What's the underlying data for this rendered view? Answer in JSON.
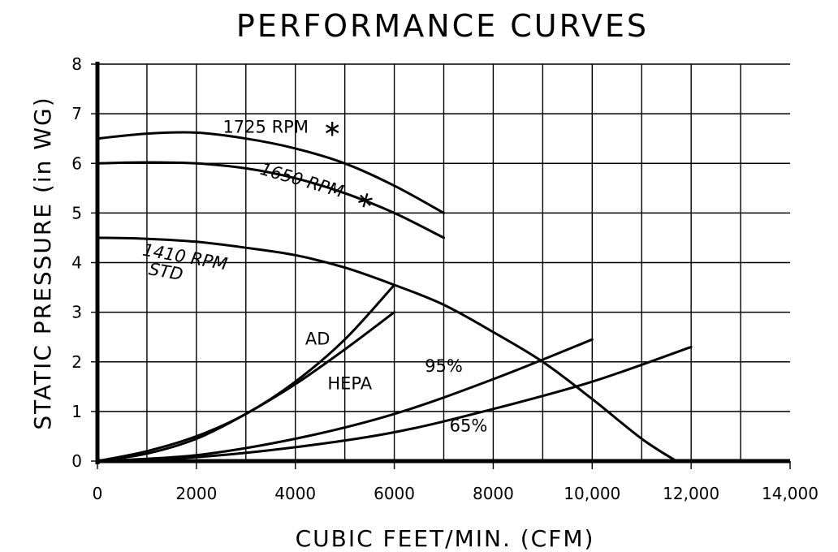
{
  "chart_data": {
    "type": "line",
    "title": "PERFORMANCE CURVES",
    "xlabel": "CUBIC FEET/MIN. (CFM)",
    "ylabel": "STATIC PRESSURE (in WG)",
    "xlim": [
      0,
      14000
    ],
    "ylim": [
      0,
      8
    ],
    "grid": true,
    "x_ticks": [
      0,
      2000,
      4000,
      6000,
      8000,
      10000,
      12000,
      14000
    ],
    "x_tick_labels": [
      "0",
      "2000",
      "4000",
      "6000",
      "8000",
      "10,000",
      "12,000",
      "14,000"
    ],
    "y_ticks": [
      0,
      1,
      2,
      3,
      4,
      5,
      6,
      7,
      8
    ],
    "y_tick_labels": [
      "0",
      "1",
      "2",
      "3",
      "4",
      "5",
      "6",
      "7",
      "8"
    ],
    "series": [
      {
        "name": "1725 RPM",
        "label_lines": [
          "1725 RPM"
        ],
        "asterisk": true,
        "x": [
          0,
          1000,
          2000,
          3000,
          4000,
          5000,
          6000,
          7000
        ],
        "y": [
          6.5,
          6.6,
          6.62,
          6.5,
          6.3,
          6.0,
          5.55,
          5.0
        ]
      },
      {
        "name": "1650 RPM",
        "label_lines": [
          "1650 RPM"
        ],
        "asterisk": true,
        "x": [
          0,
          1000,
          2000,
          3000,
          4000,
          5000,
          6000,
          7000
        ],
        "y": [
          6.0,
          6.02,
          6.0,
          5.9,
          5.7,
          5.4,
          5.0,
          4.5
        ]
      },
      {
        "name": "1410 RPM STD",
        "label_lines": [
          "1410 RPM",
          "STD"
        ],
        "asterisk": false,
        "x": [
          0,
          1000,
          2000,
          3000,
          4000,
          5000,
          6000,
          7000,
          8000,
          9000,
          10000,
          11000,
          11700
        ],
        "y": [
          4.5,
          4.48,
          4.42,
          4.3,
          4.15,
          3.9,
          3.55,
          3.15,
          2.6,
          2.0,
          1.25,
          0.45,
          0.0
        ]
      },
      {
        "name": "AD",
        "label_lines": [
          "AD"
        ],
        "asterisk": false,
        "x": [
          0,
          1000,
          2000,
          3000,
          4000,
          5000,
          6000
        ],
        "y": [
          0.0,
          0.2,
          0.5,
          0.95,
          1.6,
          2.45,
          3.55
        ]
      },
      {
        "name": "HEPA",
        "label_lines": [
          "HEPA"
        ],
        "asterisk": false,
        "x": [
          0,
          1000,
          2000,
          3000,
          4000,
          5000,
          6000
        ],
        "y": [
          0.0,
          0.15,
          0.45,
          0.95,
          1.55,
          2.25,
          3.0
        ]
      },
      {
        "name": "95%",
        "label_lines": [
          "95%"
        ],
        "asterisk": false,
        "x": [
          0,
          2000,
          4000,
          6000,
          8000,
          10000
        ],
        "y": [
          0.0,
          0.12,
          0.45,
          0.95,
          1.65,
          2.45
        ]
      },
      {
        "name": "65%",
        "label_lines": [
          "65%"
        ],
        "asterisk": false,
        "x": [
          0,
          2000,
          4000,
          6000,
          8000,
          10000,
          12000
        ],
        "y": [
          0.0,
          0.08,
          0.28,
          0.58,
          1.05,
          1.6,
          2.3
        ]
      }
    ]
  }
}
